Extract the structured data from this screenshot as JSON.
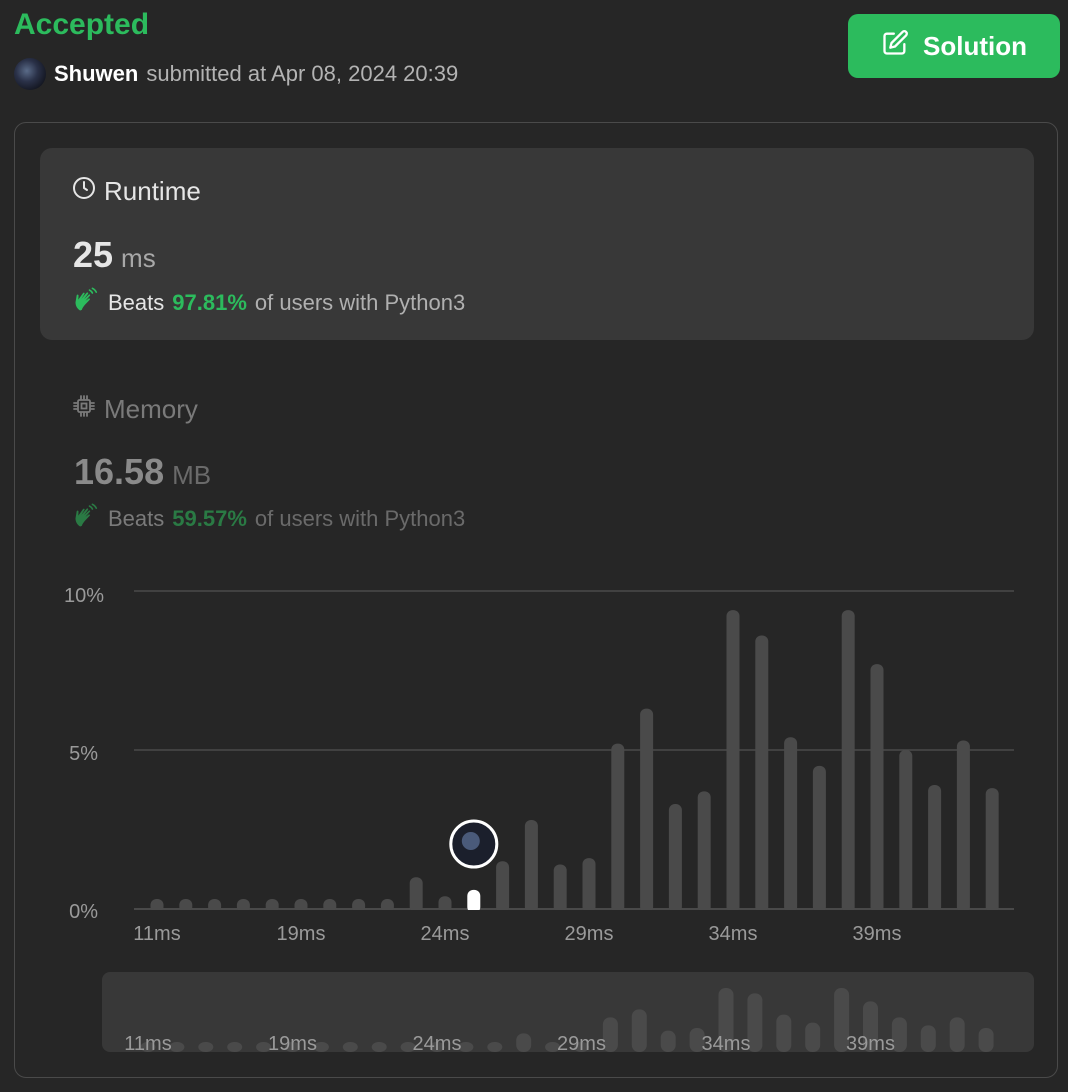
{
  "header": {
    "status": "Accepted",
    "username": "Shuwen",
    "submitted_text": "submitted at Apr 08, 2024 20:39",
    "solution_label": "Solution"
  },
  "runtime": {
    "title": "Runtime",
    "value": "25",
    "unit": "ms",
    "beats_label": "Beats",
    "beats_pct": "97.81%",
    "beats_suffix": "of users with Python3"
  },
  "memory": {
    "title": "Memory",
    "value": "16.58",
    "unit": "MB",
    "beats_label": "Beats",
    "beats_pct": "59.57%",
    "beats_suffix": "of users with Python3"
  },
  "colors": {
    "accent": "#2cbb5d",
    "bar": "#4a4a4a",
    "bar_selected": "#ffffff"
  },
  "chart_data": {
    "type": "bar",
    "ylabel": "",
    "xlabel": "",
    "y_ticks": [
      "10%",
      "5%",
      "0%"
    ],
    "ylim": [
      0,
      10
    ],
    "x_tick_labels": [
      "11ms",
      "19ms",
      "24ms",
      "29ms",
      "34ms",
      "39ms"
    ],
    "selected_index": 11,
    "values": [
      0.3,
      0.3,
      0.3,
      0.3,
      0.3,
      0.3,
      0.3,
      0.3,
      0.3,
      1.0,
      0.4,
      0.6,
      1.5,
      2.8,
      1.4,
      1.6,
      5.2,
      6.3,
      3.3,
      3.7,
      9.4,
      8.6,
      5.4,
      4.5,
      9.4,
      7.7,
      5.0,
      3.9,
      5.3,
      3.8
    ],
    "minimap_values": [
      0.3,
      0.3,
      0.3,
      0.3,
      0.3,
      0.3,
      0.3,
      0.3,
      0.3,
      0.3,
      0.3,
      0.3,
      0.3,
      0.7,
      0.3,
      0.3,
      1.3,
      1.6,
      0.8,
      0.9,
      2.4,
      2.2,
      1.4,
      1.1,
      2.4,
      1.9,
      1.3,
      1.0,
      1.3,
      0.9
    ]
  }
}
